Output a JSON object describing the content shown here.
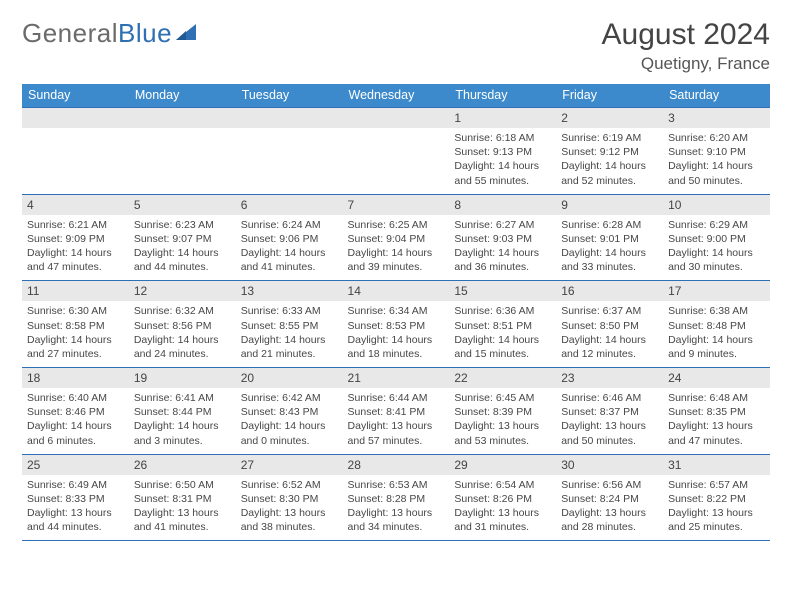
{
  "brand": {
    "part1": "General",
    "part2": "Blue"
  },
  "title": "August 2024",
  "location": "Quetigny, France",
  "header_color": "#3c8acb",
  "rule_color": "#2f6fb3",
  "daynum_bg": "#e8e8e8",
  "dow": [
    "Sunday",
    "Monday",
    "Tuesday",
    "Wednesday",
    "Thursday",
    "Friday",
    "Saturday"
  ],
  "weeks": [
    [
      null,
      null,
      null,
      null,
      {
        "d": "1",
        "sr": "6:18 AM",
        "ss": "9:13 PM",
        "dl": "14 hours and 55 minutes."
      },
      {
        "d": "2",
        "sr": "6:19 AM",
        "ss": "9:12 PM",
        "dl": "14 hours and 52 minutes."
      },
      {
        "d": "3",
        "sr": "6:20 AM",
        "ss": "9:10 PM",
        "dl": "14 hours and 50 minutes."
      }
    ],
    [
      {
        "d": "4",
        "sr": "6:21 AM",
        "ss": "9:09 PM",
        "dl": "14 hours and 47 minutes."
      },
      {
        "d": "5",
        "sr": "6:23 AM",
        "ss": "9:07 PM",
        "dl": "14 hours and 44 minutes."
      },
      {
        "d": "6",
        "sr": "6:24 AM",
        "ss": "9:06 PM",
        "dl": "14 hours and 41 minutes."
      },
      {
        "d": "7",
        "sr": "6:25 AM",
        "ss": "9:04 PM",
        "dl": "14 hours and 39 minutes."
      },
      {
        "d": "8",
        "sr": "6:27 AM",
        "ss": "9:03 PM",
        "dl": "14 hours and 36 minutes."
      },
      {
        "d": "9",
        "sr": "6:28 AM",
        "ss": "9:01 PM",
        "dl": "14 hours and 33 minutes."
      },
      {
        "d": "10",
        "sr": "6:29 AM",
        "ss": "9:00 PM",
        "dl": "14 hours and 30 minutes."
      }
    ],
    [
      {
        "d": "11",
        "sr": "6:30 AM",
        "ss": "8:58 PM",
        "dl": "14 hours and 27 minutes."
      },
      {
        "d": "12",
        "sr": "6:32 AM",
        "ss": "8:56 PM",
        "dl": "14 hours and 24 minutes."
      },
      {
        "d": "13",
        "sr": "6:33 AM",
        "ss": "8:55 PM",
        "dl": "14 hours and 21 minutes."
      },
      {
        "d": "14",
        "sr": "6:34 AM",
        "ss": "8:53 PM",
        "dl": "14 hours and 18 minutes."
      },
      {
        "d": "15",
        "sr": "6:36 AM",
        "ss": "8:51 PM",
        "dl": "14 hours and 15 minutes."
      },
      {
        "d": "16",
        "sr": "6:37 AM",
        "ss": "8:50 PM",
        "dl": "14 hours and 12 minutes."
      },
      {
        "d": "17",
        "sr": "6:38 AM",
        "ss": "8:48 PM",
        "dl": "14 hours and 9 minutes."
      }
    ],
    [
      {
        "d": "18",
        "sr": "6:40 AM",
        "ss": "8:46 PM",
        "dl": "14 hours and 6 minutes."
      },
      {
        "d": "19",
        "sr": "6:41 AM",
        "ss": "8:44 PM",
        "dl": "14 hours and 3 minutes."
      },
      {
        "d": "20",
        "sr": "6:42 AM",
        "ss": "8:43 PM",
        "dl": "14 hours and 0 minutes."
      },
      {
        "d": "21",
        "sr": "6:44 AM",
        "ss": "8:41 PM",
        "dl": "13 hours and 57 minutes."
      },
      {
        "d": "22",
        "sr": "6:45 AM",
        "ss": "8:39 PM",
        "dl": "13 hours and 53 minutes."
      },
      {
        "d": "23",
        "sr": "6:46 AM",
        "ss": "8:37 PM",
        "dl": "13 hours and 50 minutes."
      },
      {
        "d": "24",
        "sr": "6:48 AM",
        "ss": "8:35 PM",
        "dl": "13 hours and 47 minutes."
      }
    ],
    [
      {
        "d": "25",
        "sr": "6:49 AM",
        "ss": "8:33 PM",
        "dl": "13 hours and 44 minutes."
      },
      {
        "d": "26",
        "sr": "6:50 AM",
        "ss": "8:31 PM",
        "dl": "13 hours and 41 minutes."
      },
      {
        "d": "27",
        "sr": "6:52 AM",
        "ss": "8:30 PM",
        "dl": "13 hours and 38 minutes."
      },
      {
        "d": "28",
        "sr": "6:53 AM",
        "ss": "8:28 PM",
        "dl": "13 hours and 34 minutes."
      },
      {
        "d": "29",
        "sr": "6:54 AM",
        "ss": "8:26 PM",
        "dl": "13 hours and 31 minutes."
      },
      {
        "d": "30",
        "sr": "6:56 AM",
        "ss": "8:24 PM",
        "dl": "13 hours and 28 minutes."
      },
      {
        "d": "31",
        "sr": "6:57 AM",
        "ss": "8:22 PM",
        "dl": "13 hours and 25 minutes."
      }
    ]
  ],
  "labels": {
    "sunrise": "Sunrise:",
    "sunset": "Sunset:",
    "daylight": "Daylight:"
  }
}
